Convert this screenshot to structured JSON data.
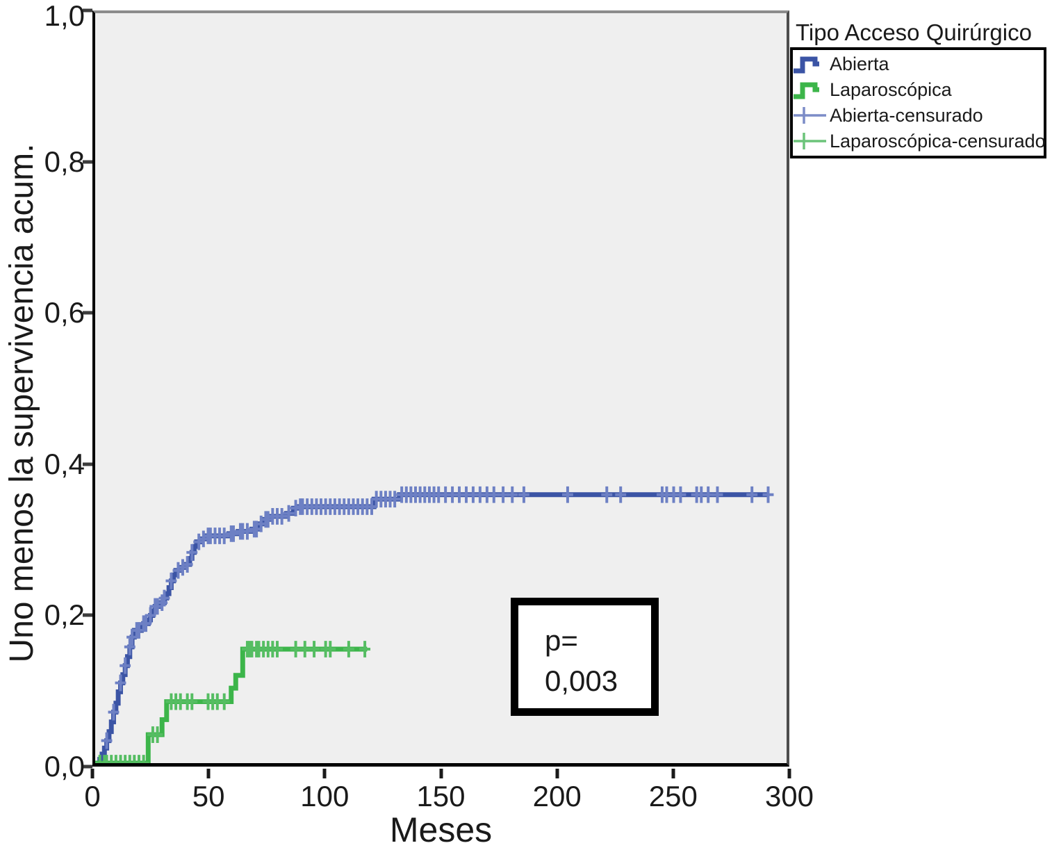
{
  "chart_data": {
    "type": "line",
    "subtype": "kaplan-meier-step",
    "title": "",
    "xlabel": "Meses",
    "ylabel": "Uno menos la supervivencia acum.",
    "xlim": [
      0,
      300
    ],
    "ylim": [
      0,
      1
    ],
    "grid": false,
    "plot_bg": "#efefef",
    "xticks": {
      "values": [
        0,
        50,
        100,
        150,
        200,
        250,
        300
      ],
      "labels": [
        "0",
        "50",
        "100",
        "150",
        "200",
        "250",
        "300"
      ]
    },
    "yticks": {
      "values": [
        0,
        0.2,
        0.4,
        0.6,
        0.8,
        1.0
      ],
      "labels": [
        "0,0",
        "0,2",
        "0,4",
        "0,6",
        "0,8",
        "1,0"
      ]
    },
    "annotation": {
      "line1": "p=",
      "line2": "0,003"
    },
    "legend": {
      "title": "Tipo Acceso Quirúrgico",
      "position": "top-right-outside",
      "items": [
        {
          "label": "Abierta",
          "type": "step",
          "color": "#3b54a5"
        },
        {
          "label": "Laparoscópica",
          "type": "step",
          "color": "#3cb54a"
        },
        {
          "label": "Abierta-censurado",
          "type": "censored",
          "color": "#7c8cc7"
        },
        {
          "label": "Laparoscópica-censurado",
          "type": "censored",
          "color": "#6cc47a"
        }
      ]
    },
    "series": [
      {
        "id": "abierta",
        "name": "Abierta",
        "color": "#3b54a5",
        "censor_color": "#6d80c4",
        "steps": [
          [
            0,
            0
          ],
          [
            2,
            0.005
          ],
          [
            3,
            0.012
          ],
          [
            4,
            0.02
          ],
          [
            5,
            0.03
          ],
          [
            6,
            0.042
          ],
          [
            7,
            0.055
          ],
          [
            8,
            0.068
          ],
          [
            9,
            0.08
          ],
          [
            10,
            0.095
          ],
          [
            11,
            0.107
          ],
          [
            12,
            0.118
          ],
          [
            13,
            0.13
          ],
          [
            14,
            0.142
          ],
          [
            15,
            0.155
          ],
          [
            16,
            0.168
          ],
          [
            17,
            0.177
          ],
          [
            20,
            0.181
          ],
          [
            21,
            0.186
          ],
          [
            23,
            0.191
          ],
          [
            24,
            0.197
          ],
          [
            25,
            0.203
          ],
          [
            26,
            0.209
          ],
          [
            28,
            0.214
          ],
          [
            30,
            0.22
          ],
          [
            31,
            0.226
          ],
          [
            32,
            0.234
          ],
          [
            33,
            0.243
          ],
          [
            34,
            0.251
          ],
          [
            35,
            0.257
          ],
          [
            37,
            0.261
          ],
          [
            39,
            0.265
          ],
          [
            41,
            0.273
          ],
          [
            42,
            0.281
          ],
          [
            43,
            0.289
          ],
          [
            44,
            0.295
          ],
          [
            46,
            0.299
          ],
          [
            48,
            0.303
          ],
          [
            58,
            0.306
          ],
          [
            62,
            0.309
          ],
          [
            68,
            0.312
          ],
          [
            71,
            0.319
          ],
          [
            73,
            0.325
          ],
          [
            76,
            0.329
          ],
          [
            83,
            0.333
          ],
          [
            86,
            0.34
          ],
          [
            88,
            0.342
          ],
          [
            121,
            0.352
          ],
          [
            132,
            0.358
          ]
        ],
        "end_x": 292,
        "censored": [
          [
            5,
            0.03
          ],
          [
            8,
            0.068
          ],
          [
            11,
            0.107
          ],
          [
            13,
            0.13
          ],
          [
            15,
            0.155
          ],
          [
            16,
            0.168
          ],
          [
            18,
            0.177
          ],
          [
            19,
            0.177
          ],
          [
            21,
            0.186
          ],
          [
            22,
            0.186
          ],
          [
            24,
            0.197
          ],
          [
            26,
            0.209
          ],
          [
            27,
            0.209
          ],
          [
            29,
            0.214
          ],
          [
            30,
            0.22
          ],
          [
            33,
            0.243
          ],
          [
            36,
            0.257
          ],
          [
            38,
            0.261
          ],
          [
            40,
            0.265
          ],
          [
            42,
            0.281
          ],
          [
            45,
            0.295
          ],
          [
            47,
            0.299
          ],
          [
            49,
            0.303
          ],
          [
            50,
            0.303
          ],
          [
            52,
            0.303
          ],
          [
            54,
            0.303
          ],
          [
            56,
            0.303
          ],
          [
            59,
            0.306
          ],
          [
            60,
            0.306
          ],
          [
            63,
            0.309
          ],
          [
            64,
            0.309
          ],
          [
            66,
            0.309
          ],
          [
            69,
            0.312
          ],
          [
            70,
            0.312
          ],
          [
            72,
            0.319
          ],
          [
            74,
            0.325
          ],
          [
            75,
            0.325
          ],
          [
            77,
            0.329
          ],
          [
            79,
            0.329
          ],
          [
            81,
            0.329
          ],
          [
            84,
            0.333
          ],
          [
            87,
            0.34
          ],
          [
            89,
            0.342
          ],
          [
            90,
            0.342
          ],
          [
            92,
            0.342
          ],
          [
            94,
            0.342
          ],
          [
            96,
            0.342
          ],
          [
            98,
            0.342
          ],
          [
            100,
            0.342
          ],
          [
            102,
            0.342
          ],
          [
            104,
            0.342
          ],
          [
            106,
            0.342
          ],
          [
            108,
            0.342
          ],
          [
            110,
            0.342
          ],
          [
            112,
            0.342
          ],
          [
            114,
            0.342
          ],
          [
            116,
            0.342
          ],
          [
            118,
            0.342
          ],
          [
            120,
            0.342
          ],
          [
            122,
            0.352
          ],
          [
            124,
            0.352
          ],
          [
            126,
            0.352
          ],
          [
            128,
            0.352
          ],
          [
            130,
            0.352
          ],
          [
            133,
            0.358
          ],
          [
            135,
            0.358
          ],
          [
            137,
            0.358
          ],
          [
            139,
            0.358
          ],
          [
            141,
            0.358
          ],
          [
            143,
            0.358
          ],
          [
            145,
            0.358
          ],
          [
            147,
            0.358
          ],
          [
            149,
            0.358
          ],
          [
            152,
            0.358
          ],
          [
            155,
            0.358
          ],
          [
            158,
            0.358
          ],
          [
            161,
            0.358
          ],
          [
            164,
            0.358
          ],
          [
            167,
            0.358
          ],
          [
            170,
            0.358
          ],
          [
            173,
            0.358
          ],
          [
            177,
            0.358
          ],
          [
            181,
            0.358
          ],
          [
            186,
            0.358
          ],
          [
            205,
            0.358
          ],
          [
            222,
            0.358
          ],
          [
            228,
            0.358
          ],
          [
            246,
            0.358
          ],
          [
            248,
            0.358
          ],
          [
            251,
            0.358
          ],
          [
            254,
            0.358
          ],
          [
            261,
            0.358
          ],
          [
            263,
            0.358
          ],
          [
            266,
            0.358
          ],
          [
            270,
            0.358
          ],
          [
            285,
            0.358
          ],
          [
            292,
            0.358
          ]
        ]
      },
      {
        "id": "laparoscopica",
        "name": "Laparoscópica",
        "color": "#3cb54a",
        "censor_color": "#55bd62",
        "steps": [
          [
            0,
            0
          ],
          [
            23,
            0.038
          ],
          [
            29,
            0.058
          ],
          [
            31,
            0.082
          ],
          [
            59,
            0.1
          ],
          [
            61,
            0.117
          ],
          [
            64,
            0.152
          ]
        ],
        "end_x": 118,
        "censored": [
          [
            2,
            0
          ],
          [
            4,
            0
          ],
          [
            5,
            0
          ],
          [
            7,
            0
          ],
          [
            9,
            0
          ],
          [
            11,
            0
          ],
          [
            13,
            0
          ],
          [
            15,
            0
          ],
          [
            17,
            0
          ],
          [
            19,
            0
          ],
          [
            21,
            0
          ],
          [
            25,
            0.038
          ],
          [
            27,
            0.038
          ],
          [
            33,
            0.082
          ],
          [
            35,
            0.082
          ],
          [
            37,
            0.082
          ],
          [
            40,
            0.082
          ],
          [
            42,
            0.082
          ],
          [
            49,
            0.082
          ],
          [
            51,
            0.082
          ],
          [
            53,
            0.082
          ],
          [
            56,
            0.082
          ],
          [
            66,
            0.152
          ],
          [
            67,
            0.152
          ],
          [
            68,
            0.152
          ],
          [
            70,
            0.152
          ],
          [
            71,
            0.152
          ],
          [
            73,
            0.152
          ],
          [
            75,
            0.152
          ],
          [
            77,
            0.152
          ],
          [
            79,
            0.152
          ],
          [
            87,
            0.152
          ],
          [
            91,
            0.152
          ],
          [
            95,
            0.152
          ],
          [
            100,
            0.152
          ],
          [
            102,
            0.152
          ],
          [
            110,
            0.152
          ],
          [
            117,
            0.152
          ]
        ]
      }
    ]
  }
}
